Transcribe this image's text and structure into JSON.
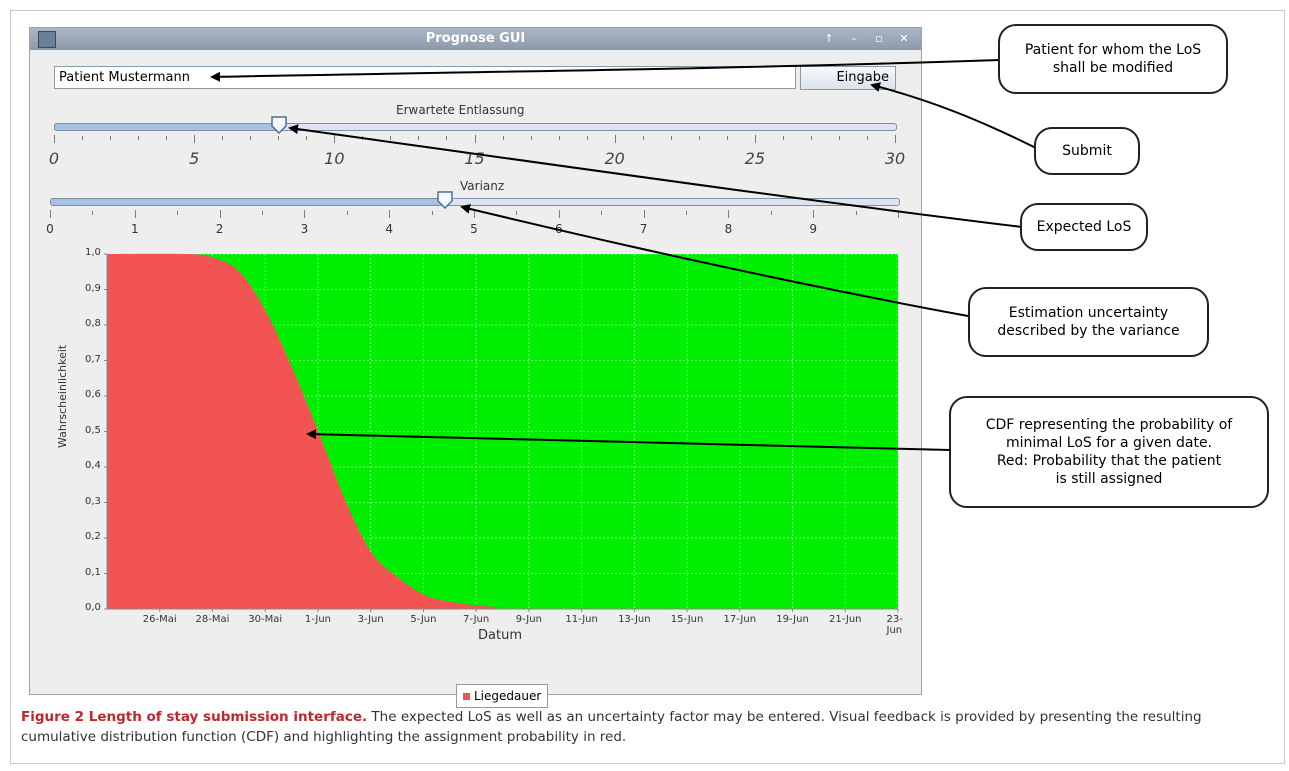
{
  "window": {
    "title": "Prognose GUI",
    "controls": [
      "↑",
      "–",
      "▫",
      "✕"
    ]
  },
  "patient_input": {
    "value": "Patient Mustermann"
  },
  "submit_button": {
    "label": "Eingabe"
  },
  "slider_los": {
    "label": "Erwartete Entlassung",
    "min": 0,
    "max": 30,
    "value": 8,
    "tick_labels": [
      "0",
      "5",
      "10",
      "15",
      "20",
      "25",
      "30"
    ]
  },
  "slider_var": {
    "label": "Varianz",
    "min": 0,
    "max": 10,
    "value": 4.65,
    "tick_labels": [
      "0",
      "1",
      "2",
      "3",
      "4",
      "5",
      "6",
      "7",
      "8",
      "9"
    ]
  },
  "chart_data": {
    "type": "area",
    "xlabel": "Datum",
    "ylabel": "Wahrscheinlichkeit",
    "ylim": [
      0,
      1
    ],
    "yticks": [
      "0,0",
      "0,1",
      "0,2",
      "0,3",
      "0,4",
      "0,5",
      "0,6",
      "0,7",
      "0,8",
      "0,9",
      "1,0"
    ],
    "xticks": [
      "26-Mai",
      "28-Mai",
      "30-Mai",
      "1-Jun",
      "3-Jun",
      "5-Jun",
      "7-Jun",
      "9-Jun",
      "11-Jun",
      "13-Jun",
      "15-Jun",
      "17-Jun",
      "19-Jun",
      "21-Jun",
      "23-Jun"
    ],
    "series": [
      {
        "name": "Liegedauer",
        "color": "#f25353",
        "x": [
          "24-Mai",
          "27-Mai",
          "28-Mai",
          "29-Mai",
          "30-Mai",
          "31-Mai",
          "1-Jun",
          "2-Jun",
          "3-Jun",
          "4-Jun",
          "5-Jun",
          "6-Jun",
          "7-Jun",
          "8-Jun",
          "9-Jun",
          "23-Jun"
        ],
        "values": [
          1.0,
          1.0,
          0.99,
          0.95,
          0.84,
          0.68,
          0.5,
          0.31,
          0.16,
          0.09,
          0.04,
          0.02,
          0.01,
          0.005,
          0.0,
          0.0
        ]
      }
    ],
    "background_color": "#00ee00",
    "grid": true,
    "legend_position": "bottom"
  },
  "legend": {
    "label": "Liegedauer"
  },
  "annotations": [
    {
      "key": "patient",
      "text": "Patient for whom the LoS\nshall be modified"
    },
    {
      "key": "submit",
      "text": "Submit"
    },
    {
      "key": "expected",
      "text": "Expected LoS"
    },
    {
      "key": "uncertainty",
      "text": "Estimation uncertainty\ndescribed by the variance"
    },
    {
      "key": "cdf",
      "text": "CDF representing the probability of\nminimal LoS for a given date.\nRed: Probability that the patient\nis still assigned"
    }
  ],
  "caption": {
    "bold": "Figure 2 Length of stay submission interface.",
    "text": " The expected LoS as well as an uncertainty factor may be entered. Visual feedback is provided by presenting the resulting cumulative distribution function (CDF) and highlighting the assignment probability in red."
  }
}
